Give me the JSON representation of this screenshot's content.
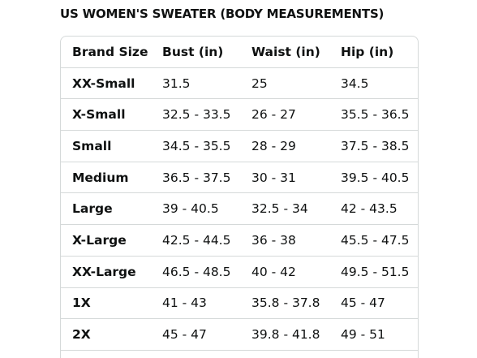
{
  "title": "US WOMEN'S SWEATER (BODY MEASUREMENTS)",
  "table": {
    "header": [
      "Brand Size",
      "Bust (in)",
      "Waist (in)",
      "Hip (in)"
    ],
    "rows": [
      [
        "XX-Small",
        "31.5",
        "25",
        "34.5"
      ],
      [
        "X-Small",
        "32.5 - 33.5",
        "26 - 27",
        "35.5 - 36.5"
      ],
      [
        "Small",
        "34.5 - 35.5",
        "28 - 29",
        "37.5 - 38.5"
      ],
      [
        "Medium",
        "36.5 - 37.5",
        "30 - 31",
        "39.5 - 40.5"
      ],
      [
        "Large",
        "39 - 40.5",
        "32.5 - 34",
        "42 - 43.5"
      ],
      [
        "X-Large",
        "42.5 - 44.5",
        "36 - 38",
        "45.5 - 47.5"
      ],
      [
        "XX-Large",
        "46.5 - 48.5",
        "40 - 42",
        "49.5 - 51.5"
      ],
      [
        "1X",
        "41 - 43",
        "35.8 - 37.8",
        "45 - 47"
      ],
      [
        "2X",
        "45 - 47",
        "39.8 - 41.8",
        "49 - 51"
      ]
    ]
  }
}
